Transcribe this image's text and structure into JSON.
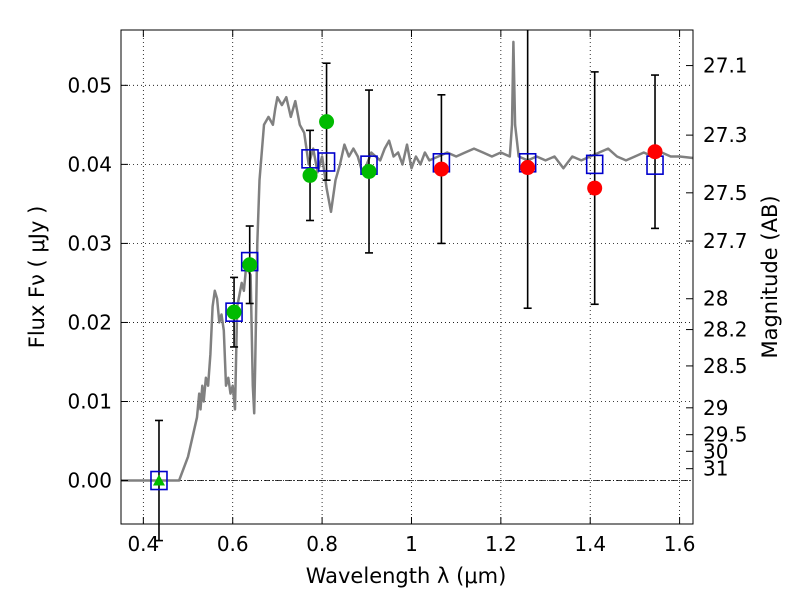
{
  "chart_data": {
    "type": "scatter",
    "xlabel": "Wavelength  λ (μm)",
    "ylabel": "Flux  Fν  ( μJy )",
    "y2label": "Magnitude (AB)",
    "xlim": [
      0.35,
      1.63
    ],
    "ylim": [
      -0.0055,
      0.057
    ],
    "xticks": [
      0.4,
      0.6,
      0.8,
      1.0,
      1.2,
      1.4,
      1.6
    ],
    "xtick_labels": [
      "0.4",
      "0.6",
      "0.8",
      "1",
      "1.2",
      "1.4",
      "1.6"
    ],
    "yticks": [
      0.0,
      0.01,
      0.02,
      0.03,
      0.04,
      0.05
    ],
    "ytick_labels": [
      "0.00",
      "0.01",
      "0.02",
      "0.03",
      "0.04",
      "0.05"
    ],
    "y2ticks": [
      {
        "label": "27.1",
        "flux": 0.0525
      },
      {
        "label": "27.3",
        "flux": 0.0437
      },
      {
        "label": "27.5",
        "flux": 0.0364
      },
      {
        "label": "27.7",
        "flux": 0.0303
      },
      {
        "label": "28",
        "flux": 0.023
      },
      {
        "label": "28.2",
        "flux": 0.0191
      },
      {
        "label": "28.5",
        "flux": 0.0145
      },
      {
        "label": "29",
        "flux": 0.0092
      },
      {
        "label": "29.5",
        "flux": 0.0058
      },
      {
        "label": "30",
        "flux": 0.0037
      },
      {
        "label": "31",
        "flux": 0.0015
      }
    ],
    "grid": true,
    "colors": {
      "model": "#808080",
      "box": "#0000cc",
      "green": "#00bb00",
      "red": "#ff0000",
      "errorbar": "#000000",
      "zeroline": "#000000"
    },
    "model_sed": [
      [
        0.35,
        0.0
      ],
      [
        0.47,
        0.0
      ],
      [
        0.48,
        0.0
      ],
      [
        0.5,
        0.003
      ],
      [
        0.52,
        0.008
      ],
      [
        0.525,
        0.011
      ],
      [
        0.528,
        0.009
      ],
      [
        0.532,
        0.012
      ],
      [
        0.535,
        0.01
      ],
      [
        0.54,
        0.013
      ],
      [
        0.545,
        0.012
      ],
      [
        0.55,
        0.016
      ],
      [
        0.555,
        0.022
      ],
      [
        0.56,
        0.024
      ],
      [
        0.565,
        0.023
      ],
      [
        0.57,
        0.02
      ],
      [
        0.575,
        0.021
      ],
      [
        0.58,
        0.019
      ],
      [
        0.585,
        0.012
      ],
      [
        0.59,
        0.013
      ],
      [
        0.595,
        0.011
      ],
      [
        0.6,
        0.012
      ],
      [
        0.605,
        0.009
      ],
      [
        0.61,
        0.022
      ],
      [
        0.62,
        0.025
      ],
      [
        0.625,
        0.024
      ],
      [
        0.63,
        0.027
      ],
      [
        0.64,
        0.026
      ],
      [
        0.645,
        0.012
      ],
      [
        0.648,
        0.0085
      ],
      [
        0.65,
        0.014
      ],
      [
        0.655,
        0.03
      ],
      [
        0.66,
        0.038
      ],
      [
        0.67,
        0.045
      ],
      [
        0.68,
        0.046
      ],
      [
        0.69,
        0.045
      ],
      [
        0.695,
        0.047
      ],
      [
        0.7,
        0.0485
      ],
      [
        0.71,
        0.0475
      ],
      [
        0.72,
        0.0485
      ],
      [
        0.73,
        0.046
      ],
      [
        0.74,
        0.048
      ],
      [
        0.75,
        0.045
      ],
      [
        0.76,
        0.044
      ],
      [
        0.77,
        0.04
      ],
      [
        0.78,
        0.042
      ],
      [
        0.79,
        0.039
      ],
      [
        0.8,
        0.041
      ],
      [
        0.81,
        0.037
      ],
      [
        0.82,
        0.034
      ],
      [
        0.83,
        0.038
      ],
      [
        0.84,
        0.04
      ],
      [
        0.85,
        0.0425
      ],
      [
        0.86,
        0.041
      ],
      [
        0.87,
        0.042
      ],
      [
        0.88,
        0.041
      ],
      [
        0.89,
        0.039
      ],
      [
        0.9,
        0.04
      ],
      [
        0.91,
        0.0415
      ],
      [
        0.92,
        0.041
      ],
      [
        0.93,
        0.0405
      ],
      [
        0.94,
        0.042
      ],
      [
        0.95,
        0.043
      ],
      [
        0.96,
        0.041
      ],
      [
        0.97,
        0.0415
      ],
      [
        0.98,
        0.04
      ],
      [
        0.99,
        0.0425
      ],
      [
        1.0,
        0.0395
      ],
      [
        1.01,
        0.041
      ],
      [
        1.02,
        0.04
      ],
      [
        1.03,
        0.0415
      ],
      [
        1.04,
        0.0405
      ],
      [
        1.06,
        0.041
      ],
      [
        1.08,
        0.0415
      ],
      [
        1.1,
        0.041
      ],
      [
        1.12,
        0.0415
      ],
      [
        1.14,
        0.042
      ],
      [
        1.16,
        0.0415
      ],
      [
        1.18,
        0.041
      ],
      [
        1.2,
        0.0415
      ],
      [
        1.22,
        0.041
      ],
      [
        1.225,
        0.045
      ],
      [
        1.228,
        0.0555
      ],
      [
        1.232,
        0.045
      ],
      [
        1.24,
        0.041
      ],
      [
        1.26,
        0.0405
      ],
      [
        1.28,
        0.041
      ],
      [
        1.3,
        0.0405
      ],
      [
        1.32,
        0.041
      ],
      [
        1.34,
        0.0395
      ],
      [
        1.36,
        0.041
      ],
      [
        1.38,
        0.0405
      ],
      [
        1.4,
        0.041
      ],
      [
        1.42,
        0.0415
      ],
      [
        1.44,
        0.042
      ],
      [
        1.46,
        0.041
      ],
      [
        1.48,
        0.0405
      ],
      [
        1.5,
        0.041
      ],
      [
        1.52,
        0.0415
      ],
      [
        1.54,
        0.041
      ],
      [
        1.56,
        0.0415
      ],
      [
        1.58,
        0.041
      ],
      [
        1.6,
        0.041
      ],
      [
        1.63,
        0.0408
      ]
    ],
    "model_photometry": [
      {
        "x": 0.435,
        "y": 0.0
      },
      {
        "x": 0.603,
        "y": 0.0213
      },
      {
        "x": 0.638,
        "y": 0.0277
      },
      {
        "x": 0.773,
        "y": 0.0407
      },
      {
        "x": 0.81,
        "y": 0.0403
      },
      {
        "x": 0.905,
        "y": 0.0399
      },
      {
        "x": 1.067,
        "y": 0.0402
      },
      {
        "x": 1.26,
        "y": 0.0402
      },
      {
        "x": 1.41,
        "y": 0.04
      },
      {
        "x": 1.545,
        "y": 0.0399
      }
    ],
    "observed": [
      {
        "x": 0.435,
        "y": 0.0,
        "err": 0.0076,
        "marker": "triangle",
        "color": "green"
      },
      {
        "x": 0.603,
        "y": 0.0213,
        "err": 0.0044,
        "marker": "circle",
        "color": "green"
      },
      {
        "x": 0.638,
        "y": 0.0273,
        "err": 0.0049,
        "marker": "circle",
        "color": "green"
      },
      {
        "x": 0.773,
        "y": 0.0386,
        "err": 0.0057,
        "marker": "circle",
        "color": "green"
      },
      {
        "x": 0.81,
        "y": 0.0454,
        "err": 0.0074,
        "marker": "circle",
        "color": "green"
      },
      {
        "x": 0.905,
        "y": 0.0391,
        "err": 0.0103,
        "marker": "circle",
        "color": "green"
      },
      {
        "x": 1.067,
        "y": 0.0394,
        "err": 0.0094,
        "marker": "circle",
        "color": "red"
      },
      {
        "x": 1.26,
        "y": 0.0396,
        "err": 0.0178,
        "marker": "circle",
        "color": "red"
      },
      {
        "x": 1.41,
        "y": 0.037,
        "err": 0.0147,
        "marker": "circle",
        "color": "red"
      },
      {
        "x": 1.545,
        "y": 0.0416,
        "err": 0.0097,
        "marker": "circle",
        "color": "red"
      }
    ]
  }
}
